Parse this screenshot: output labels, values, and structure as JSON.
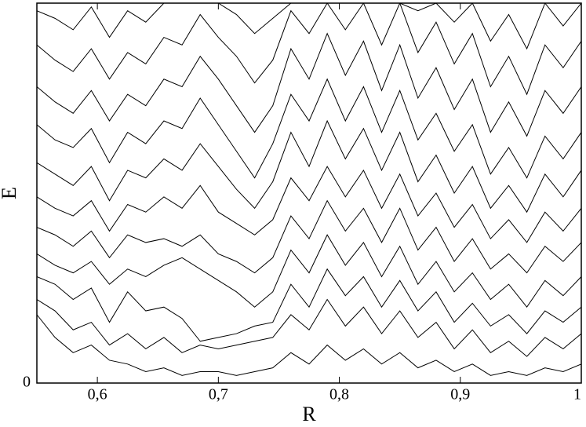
{
  "chart_data": {
    "type": "line",
    "xlabel": "R",
    "ylabel": "E",
    "x": [
      0.55,
      0.565,
      0.58,
      0.595,
      0.61,
      0.625,
      0.64,
      0.655,
      0.67,
      0.685,
      0.7,
      0.715,
      0.73,
      0.745,
      0.76,
      0.775,
      0.79,
      0.805,
      0.82,
      0.835,
      0.85,
      0.865,
      0.88,
      0.895,
      0.91,
      0.925,
      0.94,
      0.955,
      0.97,
      0.985,
      1.0
    ],
    "xlim": [
      0.55,
      1.0
    ],
    "xticks": [
      {
        "value": 0.6,
        "label": "0,6"
      },
      {
        "value": 0.7,
        "label": "0,7"
      },
      {
        "value": 0.8,
        "label": "0,8"
      },
      {
        "value": 0.9,
        "label": "0,9"
      },
      1
    ],
    "ylim": [
      0,
      10
    ],
    "yticks": [
      0
    ],
    "grid": false,
    "series": [
      {
        "color": "#000000",
        "values": [
          1.8,
          1.2,
          0.8,
          1.0,
          0.6,
          0.5,
          0.3,
          0.4,
          0.2,
          0.3,
          0.3,
          0.2,
          0.3,
          0.4,
          0.8,
          0.5,
          1.0,
          0.6,
          0.9,
          0.5,
          0.8,
          0.4,
          0.6,
          0.3,
          0.5,
          0.2,
          0.3,
          0.2,
          0.4,
          0.3,
          0.5
        ]
      },
      {
        "color": "#000000",
        "values": [
          2.2,
          1.9,
          1.4,
          1.6,
          1.0,
          1.3,
          0.9,
          1.2,
          0.8,
          1.0,
          0.9,
          1.0,
          1.1,
          1.2,
          1.8,
          1.4,
          2.2,
          1.5,
          2.0,
          1.3,
          1.9,
          1.2,
          1.6,
          0.9,
          1.4,
          0.8,
          1.1,
          0.7,
          1.2,
          0.9,
          1.3
        ]
      },
      {
        "color": "#000000",
        "values": [
          2.8,
          2.6,
          2.2,
          2.5,
          1.6,
          2.4,
          1.9,
          2.0,
          1.7,
          1.1,
          1.2,
          1.3,
          1.5,
          1.6,
          2.6,
          2.0,
          3.0,
          2.3,
          2.8,
          2.0,
          2.7,
          1.9,
          2.4,
          1.6,
          2.1,
          1.5,
          1.8,
          1.3,
          1.9,
          1.6,
          2.0
        ]
      },
      {
        "color": "#000000",
        "values": [
          3.4,
          3.1,
          2.9,
          3.2,
          2.6,
          3.0,
          2.8,
          3.1,
          3.3,
          3.0,
          2.7,
          2.4,
          2.0,
          2.4,
          3.5,
          2.9,
          3.9,
          3.1,
          3.7,
          2.8,
          3.6,
          2.6,
          3.2,
          2.4,
          2.9,
          2.2,
          2.6,
          2.0,
          2.7,
          2.3,
          2.8
        ]
      },
      {
        "color": "#000000",
        "values": [
          4.1,
          3.9,
          3.6,
          4.0,
          3.3,
          3.9,
          3.7,
          3.8,
          3.6,
          3.9,
          3.4,
          3.2,
          2.9,
          3.3,
          4.4,
          3.8,
          4.8,
          4.0,
          4.6,
          3.7,
          4.6,
          3.5,
          4.1,
          3.2,
          3.8,
          3.0,
          3.4,
          2.9,
          3.6,
          3.2,
          3.7
        ]
      },
      {
        "color": "#000000",
        "values": [
          4.9,
          4.6,
          4.4,
          4.8,
          4.0,
          4.7,
          4.5,
          4.9,
          4.6,
          5.2,
          4.5,
          4.2,
          3.9,
          4.3,
          5.4,
          4.8,
          5.7,
          4.9,
          5.6,
          4.6,
          5.5,
          4.4,
          5.0,
          4.1,
          4.7,
          3.8,
          4.3,
          3.7,
          4.5,
          4.0,
          4.6
        ]
      },
      {
        "color": "#000000",
        "values": [
          5.8,
          5.5,
          5.2,
          5.7,
          4.8,
          5.6,
          5.4,
          5.9,
          5.6,
          6.3,
          5.7,
          5.1,
          4.6,
          5.3,
          6.6,
          5.7,
          6.9,
          5.9,
          6.7,
          5.6,
          6.6,
          5.3,
          6.0,
          5.0,
          5.7,
          4.6,
          5.2,
          4.5,
          5.5,
          4.9,
          5.6
        ]
      },
      {
        "color": "#000000",
        "values": [
          6.8,
          6.4,
          6.2,
          6.7,
          5.8,
          6.6,
          6.3,
          6.9,
          6.7,
          7.5,
          6.8,
          6.1,
          5.4,
          6.3,
          7.6,
          6.9,
          8.0,
          6.9,
          7.8,
          6.6,
          7.7,
          6.4,
          7.1,
          6.1,
          6.8,
          5.5,
          6.2,
          5.4,
          6.5,
          5.9,
          6.6
        ]
      },
      {
        "color": "#000000",
        "values": [
          7.8,
          7.4,
          7.1,
          7.7,
          6.9,
          7.6,
          7.3,
          8.0,
          7.8,
          8.6,
          8.0,
          7.3,
          6.6,
          7.3,
          8.8,
          8.0,
          9.2,
          8.1,
          9.0,
          7.7,
          8.9,
          7.5,
          8.3,
          7.2,
          8.0,
          6.6,
          7.4,
          6.5,
          7.7,
          7.1,
          7.8
        ]
      },
      {
        "color": "#000000",
        "values": [
          8.9,
          8.5,
          8.2,
          8.8,
          8.0,
          8.7,
          8.4,
          9.1,
          8.9,
          9.7,
          9.1,
          8.6,
          7.9,
          8.5,
          9.8,
          9.2,
          10.0,
          9.3,
          10.0,
          8.9,
          10.0,
          8.7,
          9.5,
          8.4,
          9.2,
          7.8,
          8.6,
          7.6,
          8.9,
          8.3,
          9.0
        ]
      },
      {
        "color": "#000000",
        "values": [
          9.8,
          9.6,
          9.3,
          9.9,
          9.1,
          9.8,
          9.5,
          10.0,
          10.0,
          10.0,
          10.0,
          9.7,
          9.2,
          9.6,
          10.0,
          10.0,
          10.0,
          10.0,
          10.0,
          10.0,
          10.0,
          9.8,
          10.0,
          9.5,
          10.0,
          9.0,
          9.7,
          8.8,
          10.0,
          9.4,
          10.0
        ]
      }
    ]
  }
}
